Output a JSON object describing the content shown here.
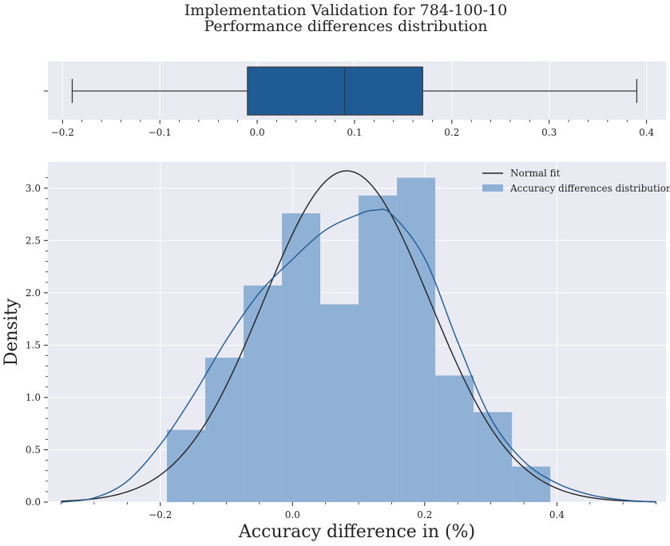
{
  "chart_data": [
    {
      "type": "box",
      "title": "Implementation Validation for 784-100-10",
      "subtitle": "Performance differences distribution",
      "xlim": [
        -0.215,
        0.42
      ],
      "xticks": [
        -0.2,
        -0.1,
        0.0,
        0.1,
        0.2,
        0.3,
        0.4
      ],
      "xtick_labels": [
        "−0.2",
        "−0.1",
        "0.0",
        "0.1",
        "0.2",
        "0.3",
        "0.4"
      ],
      "whisker_low": -0.19,
      "q1": -0.01,
      "median": 0.09,
      "q3": 0.17,
      "whisker_high": 0.39,
      "color": "#1f5b94"
    },
    {
      "type": "histogram",
      "xlabel": "Accuracy difference in (%)",
      "ylabel": "Density",
      "xlim": [
        -0.37,
        0.565
      ],
      "ylim": [
        0,
        3.25
      ],
      "xticks": [
        -0.2,
        0.0,
        0.2,
        0.4
      ],
      "xtick_labels": [
        "−0.2",
        "0.0",
        "0.2",
        "0.4"
      ],
      "yticks": [
        0.0,
        0.5,
        1.0,
        1.5,
        2.0,
        2.5,
        3.0
      ],
      "ytick_labels": [
        "0.0",
        "0.5",
        "1.0",
        "1.5",
        "2.0",
        "2.5",
        "3.0"
      ],
      "grid": true,
      "legend_position": "top-right",
      "bin_edges": [
        -0.19,
        -0.132,
        -0.074,
        -0.016,
        0.042,
        0.1,
        0.158,
        0.216,
        0.274,
        0.332,
        0.39
      ],
      "bin_densities": [
        0.69,
        1.38,
        2.07,
        2.76,
        1.89,
        2.93,
        3.1,
        1.21,
        0.86,
        0.34
      ],
      "series": [
        {
          "name": "Normal fit",
          "kind": "line",
          "color": "#222222",
          "mean": 0.082,
          "std": 0.126
        },
        {
          "name": "Accuracy differences distribution",
          "kind": "kde",
          "color": "#1f5b94",
          "x": [
            -0.35,
            -0.3,
            -0.25,
            -0.2,
            -0.15,
            -0.1,
            -0.05,
            0.0,
            0.05,
            0.1,
            0.125,
            0.15,
            0.2,
            0.25,
            0.3,
            0.35,
            0.4,
            0.45,
            0.5,
            0.55
          ],
          "y": [
            0.0,
            0.04,
            0.2,
            0.55,
            1.02,
            1.55,
            2.0,
            2.32,
            2.6,
            2.75,
            2.79,
            2.75,
            2.33,
            1.53,
            0.8,
            0.39,
            0.18,
            0.07,
            0.02,
            0.0
          ]
        },
        {
          "name": "histogram",
          "kind": "bars",
          "color": "#8fb1d5"
        }
      ]
    }
  ]
}
